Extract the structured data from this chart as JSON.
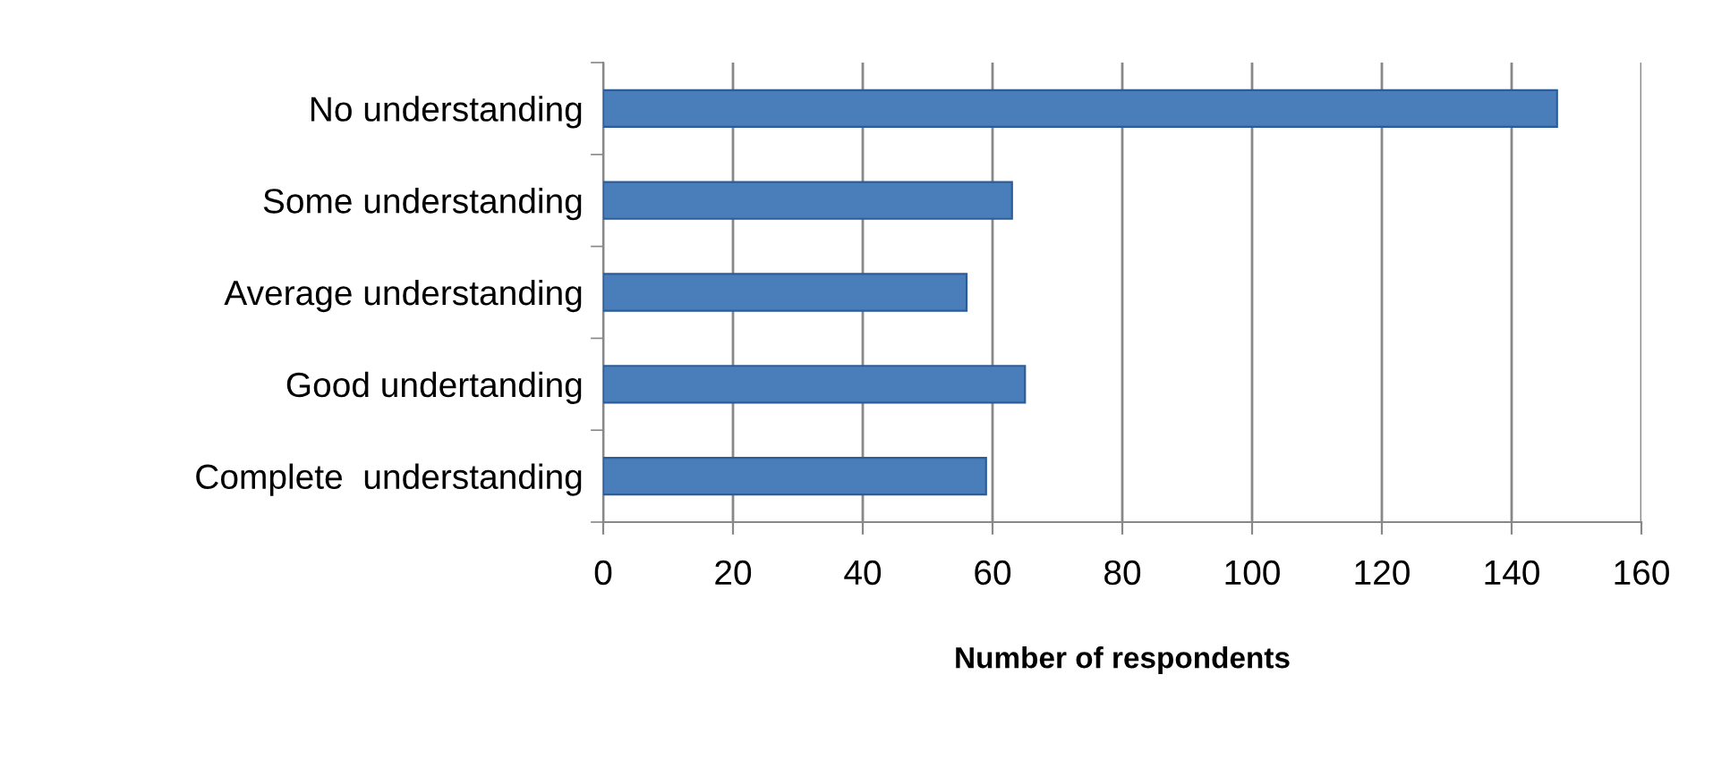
{
  "chart_data": {
    "type": "bar",
    "orientation": "horizontal",
    "xlabel": "Number of respondents",
    "categories": [
      "No understanding",
      "Some understanding",
      "Average understanding",
      "Good undertanding",
      "Complete  understanding"
    ],
    "values": [
      147,
      63,
      56,
      65,
      59
    ],
    "color": "#4a7ebb",
    "xlim": [
      0,
      160
    ],
    "xticks": [
      0,
      20,
      40,
      60,
      80,
      100,
      120,
      140,
      160
    ],
    "grid": "x"
  }
}
